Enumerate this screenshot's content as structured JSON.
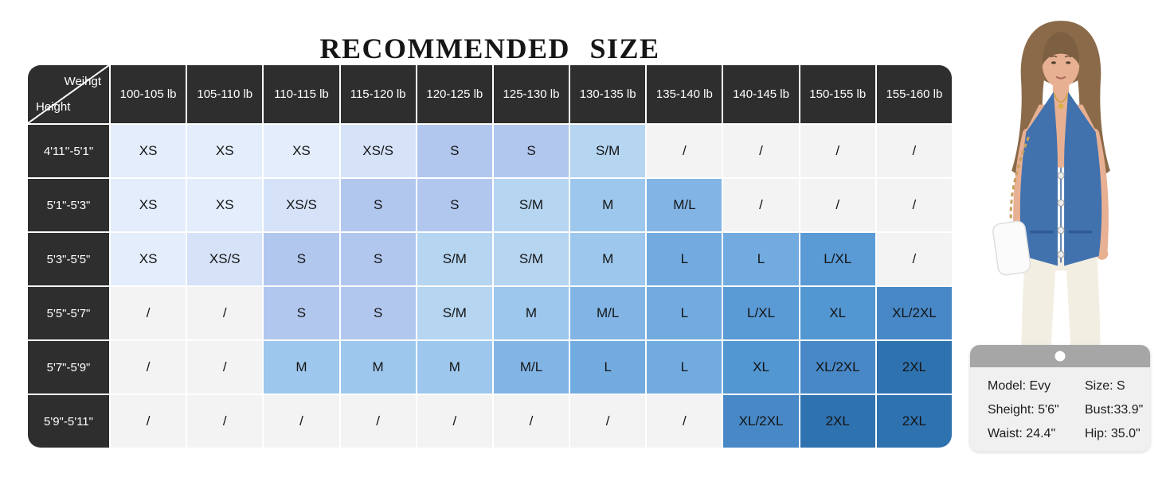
{
  "title": "RECOMMENDED SIZE",
  "chart_data": {
    "type": "table",
    "title": "RECOMMENDED SIZE",
    "corner": {
      "top_right_label": "Weihgt",
      "bottom_left_label": "Height"
    },
    "columns": [
      "100-105 lb",
      "105-110 lb",
      "110-115 lb",
      "115-120 lb",
      "120-125 lb",
      "125-130 lb",
      "130-135 lb",
      "135-140 lb",
      "140-145 lb",
      "150-155 lb",
      "155-160 lb"
    ],
    "rows": [
      "4'11''-5'1\"",
      "5'1\"-5'3\"",
      "5'3\"-5'5\"",
      "5'5\"-5'7\"",
      "5'7\"-5'9\"",
      "5'9\"-5'11\""
    ],
    "values": [
      [
        "XS",
        "XS",
        "XS",
        "XS/S",
        "S",
        "S",
        "S/M",
        "/",
        "/",
        "/",
        "/"
      ],
      [
        "XS",
        "XS",
        "XS/S",
        "S",
        "S",
        "S/M",
        "M",
        "M/L",
        "/",
        "/",
        "/"
      ],
      [
        "XS",
        "XS/S",
        "S",
        "S",
        "S/M",
        "S/M",
        "M",
        "L",
        "L",
        "L/XL",
        "/"
      ],
      [
        "/",
        "/",
        "S",
        "S",
        "S/M",
        "M",
        "M/L",
        "L",
        "L/XL",
        "XL",
        "XL/2XL"
      ],
      [
        "/",
        "/",
        "M",
        "M",
        "M",
        "M/L",
        "L",
        "L",
        "XL",
        "XL/2XL",
        "2XL"
      ],
      [
        "/",
        "/",
        "/",
        "/",
        "/",
        "/",
        "/",
        "/",
        "XL/2XL",
        "2XL",
        "2XL"
      ]
    ],
    "empty_marker": "/",
    "grid": true,
    "legend_position": "none"
  },
  "colors": {
    "header_bg": "#2e2e2e",
    "header_text": "#ffffff",
    "cell_text": "#141414",
    "size_fill": {
      "/": "#f3f3f3",
      "XS": "#e3edfb",
      "XS/S": "#d5e2f8",
      "S": "#b2c7ee",
      "S/M": "#b5d5f1",
      "M": "#9dc7ec",
      "M/L": "#82b5e5",
      "L": "#72abdf",
      "L/XL": "#5a9ad5",
      "XL": "#5296d2",
      "XL/2XL": "#4888c6",
      "2XL": "#2f72b0"
    },
    "card_band": "#a6a6a6",
    "card_bg": "#f0f0f0"
  },
  "model_card": {
    "rows": [
      [
        "Model: Evy",
        "Size: S"
      ],
      [
        "Sheight: 5'6\"",
        "Bust:33.9\""
      ],
      [
        "Waist: 24.4\"",
        "Hip: 35.0\""
      ]
    ]
  },
  "model_photo": {
    "alt": "Model wearing blue denim halter vest with buttons, white pants and white chain shoulder bag"
  }
}
